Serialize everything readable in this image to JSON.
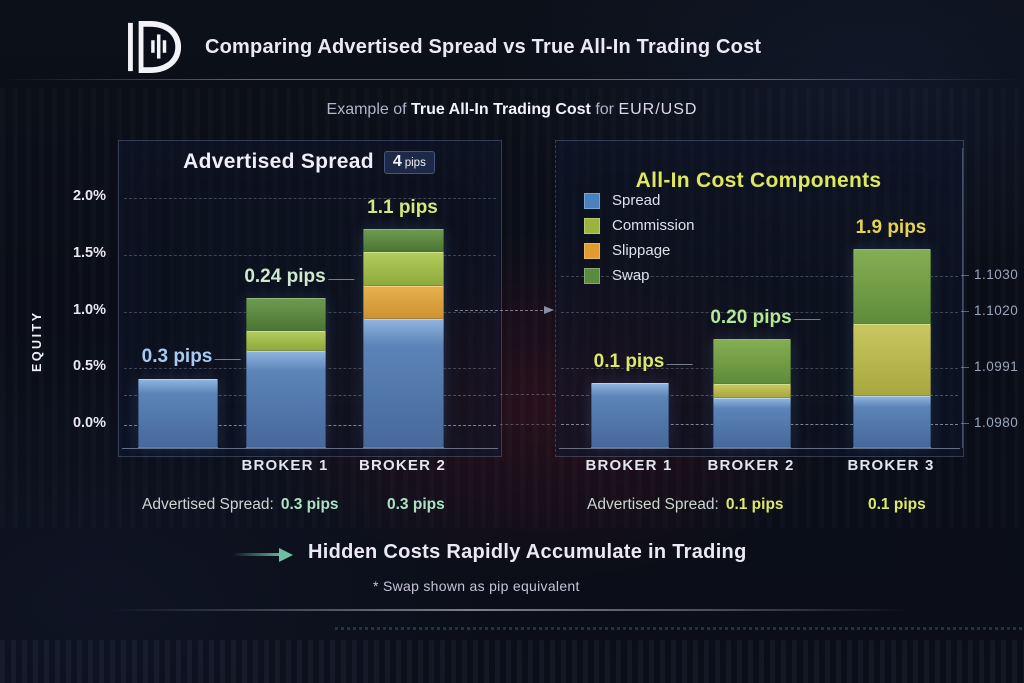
{
  "header": {
    "title": "Comparing Advertised Spread vs True All-In Trading Cost"
  },
  "subtitle": {
    "prefix": "Example of",
    "emphasis": "True All-In Trading Cost",
    "connector": "for",
    "pair": "EUR/USD"
  },
  "left_panel": {
    "title": "Advertised Spread",
    "badge": {
      "value": "4",
      "unit": "pips"
    },
    "y_axis": {
      "label": "EQUITY",
      "ticks": [
        "2.0%",
        "1.5%",
        "1.0%",
        "0.5%",
        "0.0%"
      ]
    },
    "x_labels": [
      "BROKER 1",
      "BROKER 2"
    ],
    "annotation": {
      "label": "Advertised Spread:",
      "value1": "0.3 pips",
      "value2": "0.3 pips"
    }
  },
  "right_panel": {
    "title": "All-In Cost Components",
    "legend": [
      {
        "name": "Spread",
        "color": "#4a82c0"
      },
      {
        "name": "Commission",
        "color": "#9cb43e"
      },
      {
        "name": "Slippage",
        "color": "#e09c2e"
      },
      {
        "name": "Swap",
        "color": "#5a8a3c"
      }
    ],
    "price_axis": {
      "ticks": [
        "1.1030",
        "1.1020",
        "1.0991",
        "1.0980"
      ]
    },
    "x_labels": [
      "BROKER 1",
      "BROKER 2",
      "BROKER 3"
    ],
    "annotation": {
      "label": "Advertised Spread:",
      "value1": "0.1 pips",
      "value2": "0.1 pips"
    }
  },
  "footer": {
    "arrow_text": "Hidden Costs Rapidly Accumulate in Trading",
    "footnote": "* Swap shown as pip equivalent"
  },
  "colors": {
    "spread_blue": "#4a82c0",
    "commission_green": "#9cb43e",
    "slippage_orange": "#e09c2e",
    "swap_green": "#5a8a3c",
    "accent_yellow_green": "#dfe75c"
  },
  "chart_data": [
    {
      "type": "bar",
      "title": "Advertised Spread",
      "subtitle_badge": "4 pips",
      "ylabel": "EQUITY",
      "ylim_pct": [
        0.0,
        2.0
      ],
      "y_ticks_pct": [
        2.0,
        1.5,
        1.0,
        0.5,
        0.0
      ],
      "grid": "dashed",
      "bars": [
        {
          "category": "",
          "pip_label": "0.3 pips",
          "label_color": "#a9c9f2",
          "segments": [
            {
              "component": "Spread",
              "pct": 0.41
            }
          ]
        },
        {
          "category": "BROKER 1",
          "pip_label": "0.24 pips",
          "label_color": "#cfe8cf",
          "segments": [
            {
              "component": "Spread",
              "pct": 0.65
            },
            {
              "component": "Commission",
              "pct": 0.18
            },
            {
              "component": "Swap",
              "pct": 0.29
            }
          ]
        },
        {
          "category": "BROKER 2",
          "pip_label": "1.1 pips",
          "label_color": "#d3e87d",
          "segments": [
            {
              "component": "Spread",
              "pct": 0.93
            },
            {
              "component": "Slippage",
              "pct": 0.29
            },
            {
              "component": "Commission",
              "pct": 0.3
            },
            {
              "component": "Swap",
              "pct": 0.21
            }
          ]
        }
      ],
      "annotation_row": [
        "Advertised Spread: 0.3 pips",
        "0.3 pips"
      ]
    },
    {
      "type": "bar",
      "title": "All-In Cost Components",
      "legend": [
        "Spread",
        "Commission",
        "Slippage",
        "Swap"
      ],
      "legend_position": "upper-left",
      "right_axis_price_ticks": [
        1.103,
        1.102,
        1.0991,
        1.098
      ],
      "grid": "dashed",
      "bars": [
        {
          "category": "BROKER 1",
          "pip_label": "0.1 pips",
          "label_color": "#d9e96b",
          "segments": [
            {
              "component": "Spread",
              "pct": 0.37
            }
          ]
        },
        {
          "category": "BROKER 2",
          "pip_label": "0.20 pips",
          "label_color": "#b4e895",
          "segments": [
            {
              "component": "Spread",
              "pct": 0.24
            },
            {
              "component": "Commission",
              "pct": 0.12
            },
            {
              "component": "Swap",
              "pct": 0.4
            }
          ]
        },
        {
          "category": "BROKER 3",
          "pip_label": "1.9 pips",
          "label_color": "#e5d44f",
          "segments": [
            {
              "component": "Spread",
              "pct": 0.26
            },
            {
              "component": "Commission",
              "pct": 0.63
            },
            {
              "component": "Swap",
              "pct": 0.66
            }
          ]
        }
      ],
      "annotation_row": [
        "Advertised Spread: 0.1 pips",
        "0.1 pips"
      ]
    }
  ]
}
